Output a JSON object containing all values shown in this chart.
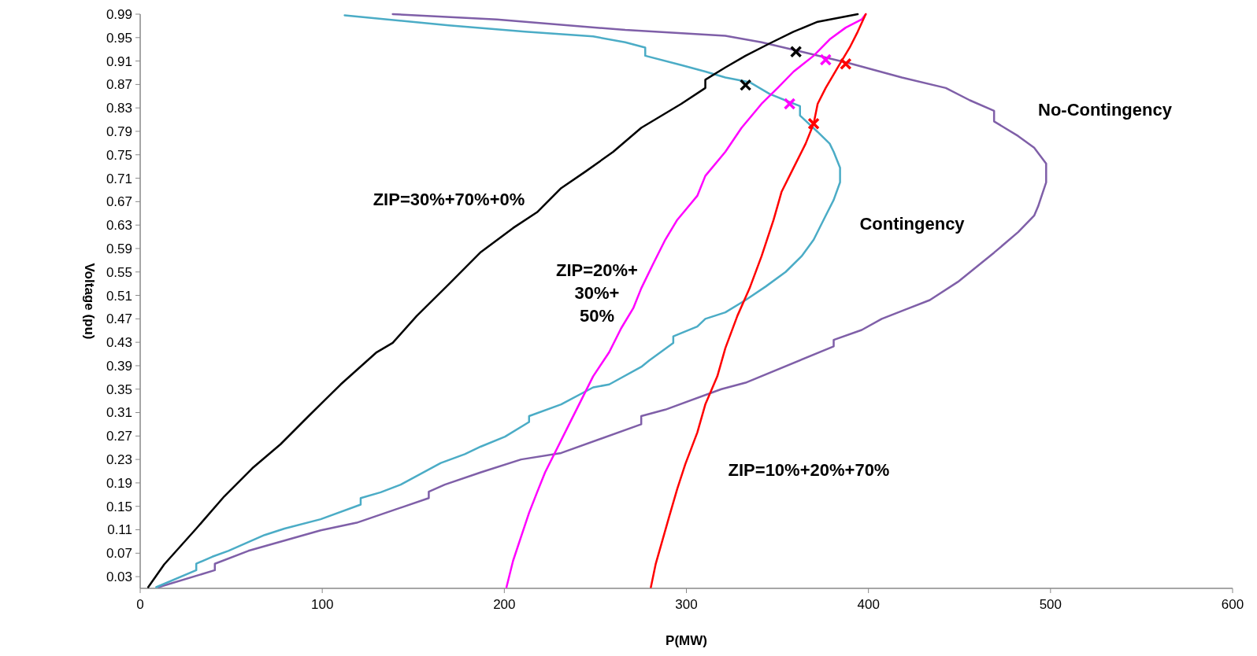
{
  "chart_data": {
    "type": "line",
    "xlabel": "P(MW)",
    "ylabel": "Voltage (pu)",
    "xlim": [
      0,
      600
    ],
    "ylim": [
      0.01,
      0.99
    ],
    "xticks": [
      0,
      100,
      200,
      300,
      400,
      500,
      600
    ],
    "yticks": [
      0.03,
      0.07,
      0.11,
      0.15,
      0.19,
      0.23,
      0.27,
      0.31,
      0.35,
      0.39,
      0.43,
      0.47,
      0.51,
      0.55,
      0.59,
      0.63,
      0.67,
      0.71,
      0.75,
      0.79,
      0.83,
      0.87,
      0.91,
      0.95,
      0.99
    ],
    "grid": false,
    "series": [
      {
        "name": "No-Contingency",
        "color": "#7f5fa8",
        "x": [
          10.1,
          41,
          41,
          59.4,
          99.1,
          118.9,
          158.5,
          158.5,
          167.3,
          187.1,
          209.2,
          231.2,
          275.2,
          275.2,
          288.4,
          319.2,
          332.5,
          380.9,
          380.9,
          396.3,
          407.3,
          420.5,
          433.7,
          449.1,
          469,
          482.2,
          491,
          493.2,
          497.6,
          497.6,
          491,
          482.2,
          469,
          469,
          455.7,
          442.5,
          418.3,
          389.7,
          363.3,
          341.3,
          321.4,
          266.4,
          195.9,
          138.7
        ],
        "values": [
          0.012,
          0.041,
          0.052,
          0.074,
          0.109,
          0.122,
          0.164,
          0.175,
          0.187,
          0.208,
          0.23,
          0.241,
          0.29,
          0.304,
          0.315,
          0.35,
          0.361,
          0.423,
          0.434,
          0.451,
          0.47,
          0.486,
          0.502,
          0.533,
          0.583,
          0.618,
          0.646,
          0.662,
          0.703,
          0.735,
          0.762,
          0.782,
          0.807,
          0.825,
          0.843,
          0.864,
          0.882,
          0.906,
          0.926,
          0.942,
          0.953,
          0.963,
          0.981,
          0.99
        ]
      },
      {
        "name": "Contingency",
        "color": "#4bacc6",
        "x": [
          8.8,
          30.8,
          30.8,
          39.6,
          48.4,
          68.3,
          79.3,
          99.1,
          121.1,
          121.1,
          132.1,
          143.1,
          165.1,
          178.3,
          187.1,
          200.4,
          213.6,
          213.6,
          231.2,
          248.8,
          257.6,
          275.2,
          279.6,
          292.8,
          292.8,
          306,
          310.4,
          321.4,
          332.5,
          343.5,
          354.5,
          363.3,
          369.9,
          376.5,
          380.9,
          384.4,
          384.4,
          380.9,
          378.7,
          372.1,
          362.4,
          362.4,
          356.7,
          345.7,
          334.7,
          321.4,
          310.4,
          297.2,
          277.4,
          277.4,
          266.4,
          248.8,
          211.4,
          169.5,
          112.3
        ],
        "values": [
          0.012,
          0.041,
          0.052,
          0.064,
          0.074,
          0.101,
          0.112,
          0.128,
          0.153,
          0.164,
          0.174,
          0.187,
          0.224,
          0.239,
          0.252,
          0.269,
          0.294,
          0.304,
          0.324,
          0.353,
          0.358,
          0.388,
          0.399,
          0.429,
          0.44,
          0.457,
          0.47,
          0.481,
          0.502,
          0.525,
          0.55,
          0.577,
          0.605,
          0.646,
          0.673,
          0.703,
          0.728,
          0.755,
          0.769,
          0.789,
          0.817,
          0.833,
          0.84,
          0.854,
          0.874,
          0.882,
          0.892,
          0.903,
          0.919,
          0.933,
          0.942,
          0.952,
          0.96,
          0.971,
          0.988
        ]
      },
      {
        "name": "ZIP=30%+70%+0%",
        "color": "#000000",
        "x": [
          4.4,
          13.2,
          30.8,
          46.2,
          61.6,
          77.1,
          92.5,
          110.1,
          129.9,
          138.7,
          151.9,
          169.5,
          187.1,
          204.8,
          218,
          231.2,
          244.4,
          259.8,
          275.2,
          297.2,
          310.4,
          310.4,
          321.4,
          332.5,
          345.7,
          358.8,
          372.1,
          394.1
        ],
        "values": [
          0.012,
          0.051,
          0.112,
          0.167,
          0.215,
          0.256,
          0.304,
          0.358,
          0.413,
          0.429,
          0.475,
          0.529,
          0.584,
          0.625,
          0.652,
          0.693,
          0.721,
          0.755,
          0.796,
          0.837,
          0.864,
          0.878,
          0.899,
          0.919,
          0.94,
          0.96,
          0.977,
          0.99
        ]
      },
      {
        "name": "ZIP=20%+\n30%+\n50%",
        "color": "#ff00ff",
        "x": [
          201.2,
          204.8,
          209.2,
          213.6,
          218,
          222.4,
          229,
          235.6,
          242.2,
          248.8,
          257.6,
          264.2,
          270.8,
          275.2,
          281.8,
          288.4,
          295,
          306,
          310.4,
          321.4,
          330.3,
          341.3,
          350.1,
          358.9,
          369.9,
          378.7,
          387.5,
          396.3,
          398.5
        ],
        "values": [
          0.012,
          0.057,
          0.098,
          0.139,
          0.174,
          0.208,
          0.249,
          0.29,
          0.331,
          0.372,
          0.413,
          0.454,
          0.488,
          0.522,
          0.564,
          0.605,
          0.639,
          0.68,
          0.714,
          0.755,
          0.796,
          0.837,
          0.864,
          0.892,
          0.919,
          0.947,
          0.967,
          0.981,
          0.99
        ]
      },
      {
        "name": "ZIP=10%+20%+70%",
        "color": "#ff0000",
        "x": [
          280.5,
          283.1,
          286.2,
          290.6,
          295,
          299.4,
          306,
          310.4,
          317,
          321.4,
          328,
          334.7,
          341.3,
          347.9,
          352.3,
          358.9,
          365.5,
          369.9,
          372.1,
          376.5,
          383.1,
          389.7,
          394.1,
          398.5
        ],
        "values": [
          0.012,
          0.051,
          0.085,
          0.133,
          0.18,
          0.222,
          0.276,
          0.324,
          0.372,
          0.42,
          0.475,
          0.522,
          0.577,
          0.639,
          0.687,
          0.728,
          0.769,
          0.803,
          0.837,
          0.864,
          0.899,
          0.933,
          0.96,
          0.99
        ]
      },
      {
        "type": "scatter",
        "marker": "cross",
        "color": "#000000",
        "x": [
          360.2,
          332.5
        ],
        "values": [
          0.926,
          0.869
        ]
      },
      {
        "type": "scatter",
        "marker": "cross",
        "color": "#ff00ff",
        "x": [
          376.5,
          356.7
        ],
        "values": [
          0.912,
          0.837
        ]
      },
      {
        "type": "scatter",
        "marker": "cross",
        "color": "#ff0000",
        "x": [
          387.5,
          369.9
        ],
        "values": [
          0.905,
          0.803
        ]
      }
    ]
  }
}
